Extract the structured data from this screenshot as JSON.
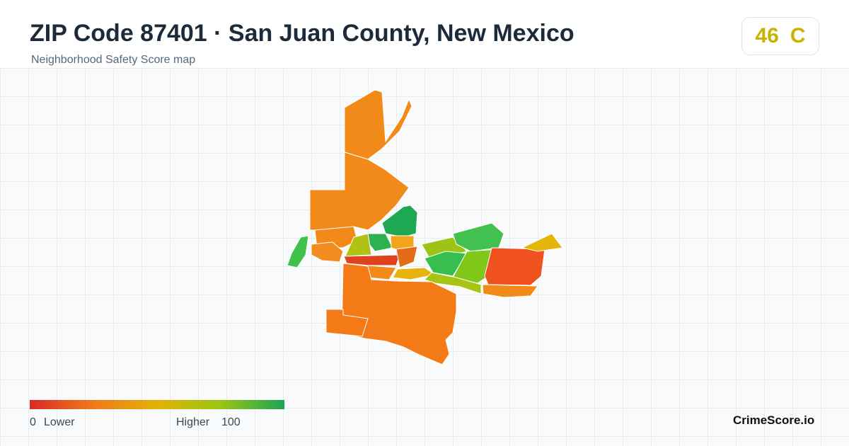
{
  "header": {
    "title": "ZIP Code 87401 · San Juan County, New Mexico",
    "subtitle": "Neighborhood Safety Score map"
  },
  "score": {
    "value": "46",
    "grade": "C"
  },
  "legend": {
    "min": "0",
    "min_label": "Lower",
    "max_label": "Higher",
    "max": "100"
  },
  "brand": "CrimeScore.io"
}
